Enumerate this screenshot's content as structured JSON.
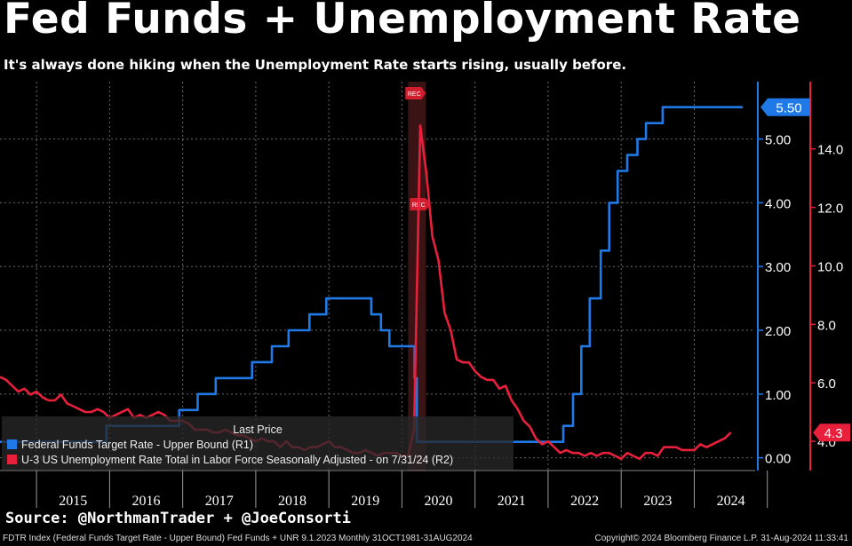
{
  "header": {
    "title": "Fed Funds + Unemployment Rate",
    "subtitle": "It's always done hiking when the Unemployment Rate starts rising, usually before."
  },
  "source": "Source: @NorthmanTrader + @JoeConsorti",
  "footer": {
    "left": "FDTR Index (Federal Funds Target Rate - Upper Bound) Fed Funds + UNR 9.1.2023  Monthly 31OCT1981-31AUG2024",
    "right": "Copyright© 2024 Bloomberg Finance L.P.     31-Aug-2024 11:33:41"
  },
  "legend": {
    "title": "Last Price",
    "entries": [
      {
        "label": "Federal Funds Target Rate - Upper Bound  (R1)",
        "color": "#1f7ae8"
      },
      {
        "label": "U-3 US Unemployment Rate Total in Labor Force Seasonally Adjusted -  on 7/31/24  (R2)",
        "color": "#e8203c"
      }
    ]
  },
  "recession_label": "REC",
  "chart_data": {
    "type": "line",
    "x_ticks": [
      "2015",
      "2016",
      "2017",
      "2018",
      "2019",
      "2020",
      "2021",
      "2022",
      "2023",
      "2024"
    ],
    "xlim": [
      "2014-07-01",
      "2024-11-01"
    ],
    "recession": {
      "start": "2020-02-01",
      "end": "2020-04-30"
    },
    "axes": {
      "R1": {
        "ylim": [
          -0.2,
          5.9
        ],
        "ticks": [
          "0.00",
          "1.00",
          "2.00",
          "3.00",
          "4.00",
          "5.00"
        ],
        "color": "#1f7ae8"
      },
      "R2": {
        "ylim": [
          3.0,
          16.3
        ],
        "ticks": [
          "4.0",
          "6.0",
          "8.0",
          "10.0",
          "12.0",
          "14.0"
        ],
        "color": "#e8203c"
      }
    },
    "last_values": {
      "R1": "5.50",
      "R2": "4.3"
    },
    "series": [
      {
        "name": "Federal Funds Target Rate - Upper Bound",
        "axis": "R1",
        "color": "#1f7ae8",
        "step": true,
        "points": [
          [
            "2014-07-01",
            0.25
          ],
          [
            "2015-12-16",
            0.5
          ],
          [
            "2016-12-14",
            0.75
          ],
          [
            "2017-03-15",
            1.0
          ],
          [
            "2017-06-14",
            1.25
          ],
          [
            "2017-12-13",
            1.5
          ],
          [
            "2018-03-21",
            1.75
          ],
          [
            "2018-06-13",
            2.0
          ],
          [
            "2018-09-26",
            2.25
          ],
          [
            "2018-12-19",
            2.5
          ],
          [
            "2019-07-31",
            2.25
          ],
          [
            "2019-09-18",
            2.0
          ],
          [
            "2019-10-30",
            1.75
          ],
          [
            "2020-03-03",
            1.25
          ],
          [
            "2020-03-15",
            0.25
          ],
          [
            "2022-03-16",
            0.5
          ],
          [
            "2022-05-04",
            1.0
          ],
          [
            "2022-06-15",
            1.75
          ],
          [
            "2022-07-27",
            2.5
          ],
          [
            "2022-09-21",
            3.25
          ],
          [
            "2022-11-02",
            4.0
          ],
          [
            "2022-12-14",
            4.5
          ],
          [
            "2023-02-01",
            4.75
          ],
          [
            "2023-03-22",
            5.0
          ],
          [
            "2023-05-03",
            5.25
          ],
          [
            "2023-07-26",
            5.5
          ],
          [
            "2024-08-31",
            5.5
          ]
        ]
      },
      {
        "name": "U-3 US Unemployment Rate Total in Labor Force Seasonally Adjusted",
        "axis": "R2",
        "color": "#e8203c",
        "step": false,
        "points": [
          [
            "2014-07-01",
            6.2
          ],
          [
            "2014-08-01",
            6.1
          ],
          [
            "2014-09-01",
            5.9
          ],
          [
            "2014-10-01",
            5.7
          ],
          [
            "2014-11-01",
            5.8
          ],
          [
            "2014-12-01",
            5.6
          ],
          [
            "2015-01-01",
            5.7
          ],
          [
            "2015-02-01",
            5.5
          ],
          [
            "2015-03-01",
            5.4
          ],
          [
            "2015-04-01",
            5.4
          ],
          [
            "2015-05-01",
            5.6
          ],
          [
            "2015-06-01",
            5.3
          ],
          [
            "2015-07-01",
            5.2
          ],
          [
            "2015-08-01",
            5.1
          ],
          [
            "2015-09-01",
            5.0
          ],
          [
            "2015-10-01",
            5.0
          ],
          [
            "2015-11-01",
            5.1
          ],
          [
            "2015-12-01",
            5.0
          ],
          [
            "2016-01-01",
            4.8
          ],
          [
            "2016-02-01",
            4.9
          ],
          [
            "2016-03-01",
            5.0
          ],
          [
            "2016-04-01",
            5.1
          ],
          [
            "2016-05-01",
            4.8
          ],
          [
            "2016-06-01",
            4.9
          ],
          [
            "2016-07-01",
            4.8
          ],
          [
            "2016-08-01",
            4.9
          ],
          [
            "2016-09-01",
            5.0
          ],
          [
            "2016-10-01",
            4.9
          ],
          [
            "2016-11-01",
            4.7
          ],
          [
            "2016-12-01",
            4.7
          ],
          [
            "2017-01-01",
            4.7
          ],
          [
            "2017-02-01",
            4.6
          ],
          [
            "2017-03-01",
            4.4
          ],
          [
            "2017-04-01",
            4.4
          ],
          [
            "2017-05-01",
            4.4
          ],
          [
            "2017-06-01",
            4.3
          ],
          [
            "2017-07-01",
            4.3
          ],
          [
            "2017-08-01",
            4.4
          ],
          [
            "2017-09-01",
            4.3
          ],
          [
            "2017-10-01",
            4.2
          ],
          [
            "2017-11-01",
            4.2
          ],
          [
            "2017-12-01",
            4.1
          ],
          [
            "2018-01-01",
            4.0
          ],
          [
            "2018-02-01",
            4.1
          ],
          [
            "2018-03-01",
            4.0
          ],
          [
            "2018-04-01",
            4.0
          ],
          [
            "2018-05-01",
            3.8
          ],
          [
            "2018-06-01",
            4.0
          ],
          [
            "2018-07-01",
            3.8
          ],
          [
            "2018-08-01",
            3.8
          ],
          [
            "2018-09-01",
            3.7
          ],
          [
            "2018-10-01",
            3.8
          ],
          [
            "2018-11-01",
            3.8
          ],
          [
            "2018-12-01",
            3.9
          ],
          [
            "2019-01-01",
            4.0
          ],
          [
            "2019-02-01",
            3.8
          ],
          [
            "2019-03-01",
            3.8
          ],
          [
            "2019-04-01",
            3.7
          ],
          [
            "2019-05-01",
            3.6
          ],
          [
            "2019-06-01",
            3.6
          ],
          [
            "2019-07-01",
            3.7
          ],
          [
            "2019-08-01",
            3.6
          ],
          [
            "2019-09-01",
            3.5
          ],
          [
            "2019-10-01",
            3.6
          ],
          [
            "2019-11-01",
            3.6
          ],
          [
            "2019-12-01",
            3.6
          ],
          [
            "2020-01-01",
            3.5
          ],
          [
            "2020-02-01",
            3.5
          ],
          [
            "2020-03-01",
            4.4
          ],
          [
            "2020-04-01",
            14.8
          ],
          [
            "2020-05-01",
            13.2
          ],
          [
            "2020-06-01",
            11.0
          ],
          [
            "2020-07-01",
            10.2
          ],
          [
            "2020-08-01",
            8.4
          ],
          [
            "2020-09-01",
            7.8
          ],
          [
            "2020-10-01",
            6.8
          ],
          [
            "2020-11-01",
            6.7
          ],
          [
            "2020-12-01",
            6.7
          ],
          [
            "2021-01-01",
            6.4
          ],
          [
            "2021-02-01",
            6.2
          ],
          [
            "2021-03-01",
            6.1
          ],
          [
            "2021-04-01",
            6.1
          ],
          [
            "2021-05-01",
            5.8
          ],
          [
            "2021-06-01",
            5.9
          ],
          [
            "2021-07-01",
            5.4
          ],
          [
            "2021-08-01",
            5.1
          ],
          [
            "2021-09-01",
            4.7
          ],
          [
            "2021-10-01",
            4.5
          ],
          [
            "2021-11-01",
            4.1
          ],
          [
            "2021-12-01",
            3.9
          ],
          [
            "2022-01-01",
            4.0
          ],
          [
            "2022-02-01",
            3.8
          ],
          [
            "2022-03-01",
            3.6
          ],
          [
            "2022-04-01",
            3.7
          ],
          [
            "2022-05-01",
            3.6
          ],
          [
            "2022-06-01",
            3.6
          ],
          [
            "2022-07-01",
            3.5
          ],
          [
            "2022-08-01",
            3.6
          ],
          [
            "2022-09-01",
            3.5
          ],
          [
            "2022-10-01",
            3.6
          ],
          [
            "2022-11-01",
            3.6
          ],
          [
            "2022-12-01",
            3.5
          ],
          [
            "2023-01-01",
            3.4
          ],
          [
            "2023-02-01",
            3.6
          ],
          [
            "2023-03-01",
            3.5
          ],
          [
            "2023-04-01",
            3.4
          ],
          [
            "2023-05-01",
            3.6
          ],
          [
            "2023-06-01",
            3.6
          ],
          [
            "2023-07-01",
            3.5
          ],
          [
            "2023-08-01",
            3.8
          ],
          [
            "2023-09-01",
            3.8
          ],
          [
            "2023-10-01",
            3.8
          ],
          [
            "2023-11-01",
            3.7
          ],
          [
            "2023-12-01",
            3.7
          ],
          [
            "2024-01-01",
            3.7
          ],
          [
            "2024-02-01",
            3.9
          ],
          [
            "2024-03-01",
            3.8
          ],
          [
            "2024-04-01",
            3.9
          ],
          [
            "2024-05-01",
            4.0
          ],
          [
            "2024-06-01",
            4.1
          ],
          [
            "2024-07-01",
            4.3
          ]
        ]
      }
    ]
  }
}
